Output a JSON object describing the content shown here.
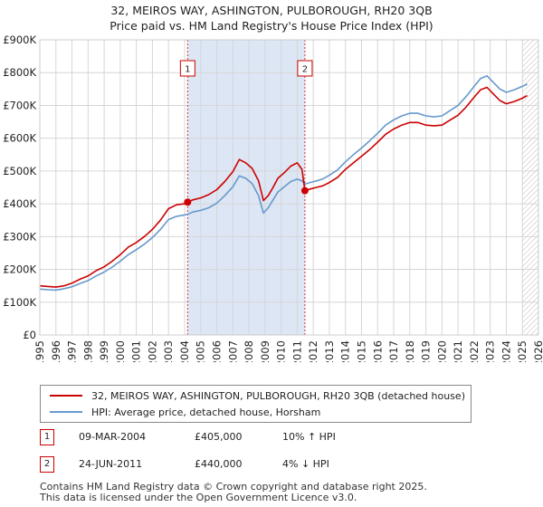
{
  "title_line1": "32, MEIROS WAY, ASHINGTON, PULBOROUGH, RH20 3QB",
  "title_line2": "Price paid vs. HM Land Registry's House Price Index (HPI)",
  "colors": {
    "property": "#cc0000",
    "hpi": "#6699cc",
    "band": "#dde6f4",
    "grid": "#d6d6d6",
    "marker_line": "#cc0000"
  },
  "chart_data": {
    "type": "line",
    "x_range": [
      1995,
      2026
    ],
    "ylim": [
      0,
      900000
    ],
    "y_ticks": [
      0,
      100000,
      200000,
      300000,
      400000,
      500000,
      600000,
      700000,
      800000,
      900000
    ],
    "y_tick_labels": [
      "£0",
      "£100K",
      "£200K",
      "£300K",
      "£400K",
      "£500K",
      "£600K",
      "£700K",
      "£800K",
      "£900K"
    ],
    "x_ticks": [
      1995,
      1996,
      1997,
      1998,
      1999,
      2000,
      2001,
      2002,
      2003,
      2004,
      2005,
      2006,
      2007,
      2008,
      2009,
      2010,
      2011,
      2012,
      2013,
      2014,
      2015,
      2016,
      2017,
      2018,
      2019,
      2020,
      2021,
      2022,
      2023,
      2024,
      2025,
      2026
    ],
    "shaded_band": [
      2004.19,
      2011.48
    ],
    "forecast_hatch_from": 2025.0,
    "series": [
      {
        "name": "32, MEIROS WAY, ASHINGTON, PULBOROUGH, RH20 3QB (detached house)",
        "color": "#cc0000",
        "points": [
          [
            1995.0,
            150000
          ],
          [
            1995.5,
            148000
          ],
          [
            1996.0,
            146000
          ],
          [
            1996.5,
            150000
          ],
          [
            1997.0,
            158000
          ],
          [
            1997.5,
            170000
          ],
          [
            1998.0,
            180000
          ],
          [
            1998.5,
            196000
          ],
          [
            1999.0,
            208000
          ],
          [
            1999.5,
            225000
          ],
          [
            2000.0,
            245000
          ],
          [
            2000.5,
            268000
          ],
          [
            2001.0,
            282000
          ],
          [
            2001.5,
            300000
          ],
          [
            2002.0,
            322000
          ],
          [
            2002.5,
            350000
          ],
          [
            2003.0,
            385000
          ],
          [
            2003.5,
            397000
          ],
          [
            2004.0,
            400000
          ],
          [
            2004.19,
            405000
          ],
          [
            2004.5,
            412000
          ],
          [
            2005.0,
            418000
          ],
          [
            2005.5,
            428000
          ],
          [
            2006.0,
            443000
          ],
          [
            2006.5,
            468000
          ],
          [
            2007.0,
            498000
          ],
          [
            2007.4,
            535000
          ],
          [
            2007.8,
            525000
          ],
          [
            2008.2,
            508000
          ],
          [
            2008.6,
            470000
          ],
          [
            2008.9,
            410000
          ],
          [
            2009.2,
            425000
          ],
          [
            2009.5,
            450000
          ],
          [
            2009.8,
            478000
          ],
          [
            2010.2,
            495000
          ],
          [
            2010.6,
            515000
          ],
          [
            2011.0,
            525000
          ],
          [
            2011.3,
            505000
          ],
          [
            2011.48,
            440000
          ],
          [
            2011.8,
            445000
          ],
          [
            2012.2,
            450000
          ],
          [
            2012.6,
            455000
          ],
          [
            2013.0,
            465000
          ],
          [
            2013.5,
            480000
          ],
          [
            2014.0,
            505000
          ],
          [
            2014.5,
            525000
          ],
          [
            2015.0,
            545000
          ],
          [
            2015.5,
            565000
          ],
          [
            2016.0,
            588000
          ],
          [
            2016.5,
            612000
          ],
          [
            2017.0,
            628000
          ],
          [
            2017.5,
            640000
          ],
          [
            2018.0,
            648000
          ],
          [
            2018.5,
            648000
          ],
          [
            2019.0,
            640000
          ],
          [
            2019.5,
            638000
          ],
          [
            2020.0,
            640000
          ],
          [
            2020.5,
            655000
          ],
          [
            2021.0,
            670000
          ],
          [
            2021.5,
            695000
          ],
          [
            2022.0,
            725000
          ],
          [
            2022.4,
            748000
          ],
          [
            2022.8,
            755000
          ],
          [
            2023.2,
            735000
          ],
          [
            2023.6,
            715000
          ],
          [
            2024.0,
            705000
          ],
          [
            2024.5,
            712000
          ],
          [
            2025.0,
            722000
          ],
          [
            2025.3,
            730000
          ]
        ]
      },
      {
        "name": "HPI: Average price, detached house, Horsham",
        "color": "#6699cc",
        "points": [
          [
            1995.0,
            140000
          ],
          [
            1995.5,
            138000
          ],
          [
            1996.0,
            137000
          ],
          [
            1996.5,
            141000
          ],
          [
            1997.0,
            147000
          ],
          [
            1997.5,
            157000
          ],
          [
            1998.0,
            166000
          ],
          [
            1998.5,
            180000
          ],
          [
            1999.0,
            192000
          ],
          [
            1999.5,
            207000
          ],
          [
            2000.0,
            225000
          ],
          [
            2000.5,
            245000
          ],
          [
            2001.0,
            260000
          ],
          [
            2001.5,
            277000
          ],
          [
            2002.0,
            297000
          ],
          [
            2002.5,
            322000
          ],
          [
            2003.0,
            352000
          ],
          [
            2003.5,
            362000
          ],
          [
            2004.0,
            366000
          ],
          [
            2004.19,
            368000
          ],
          [
            2004.5,
            375000
          ],
          [
            2005.0,
            380000
          ],
          [
            2005.5,
            388000
          ],
          [
            2006.0,
            402000
          ],
          [
            2006.5,
            425000
          ],
          [
            2007.0,
            452000
          ],
          [
            2007.4,
            485000
          ],
          [
            2007.8,
            478000
          ],
          [
            2008.2,
            462000
          ],
          [
            2008.6,
            425000
          ],
          [
            2008.9,
            372000
          ],
          [
            2009.2,
            388000
          ],
          [
            2009.5,
            412000
          ],
          [
            2009.8,
            436000
          ],
          [
            2010.2,
            452000
          ],
          [
            2010.6,
            468000
          ],
          [
            2011.0,
            475000
          ],
          [
            2011.3,
            470000
          ],
          [
            2011.48,
            460000
          ],
          [
            2011.8,
            465000
          ],
          [
            2012.2,
            470000
          ],
          [
            2012.6,
            476000
          ],
          [
            2013.0,
            487000
          ],
          [
            2013.5,
            503000
          ],
          [
            2014.0,
            528000
          ],
          [
            2014.5,
            550000
          ],
          [
            2015.0,
            570000
          ],
          [
            2015.5,
            592000
          ],
          [
            2016.0,
            615000
          ],
          [
            2016.5,
            640000
          ],
          [
            2017.0,
            656000
          ],
          [
            2017.5,
            668000
          ],
          [
            2018.0,
            676000
          ],
          [
            2018.5,
            676000
          ],
          [
            2019.0,
            668000
          ],
          [
            2019.5,
            665000
          ],
          [
            2020.0,
            668000
          ],
          [
            2020.5,
            684000
          ],
          [
            2021.0,
            700000
          ],
          [
            2021.5,
            727000
          ],
          [
            2022.0,
            758000
          ],
          [
            2022.4,
            782000
          ],
          [
            2022.8,
            790000
          ],
          [
            2023.2,
            770000
          ],
          [
            2023.6,
            750000
          ],
          [
            2024.0,
            740000
          ],
          [
            2024.5,
            748000
          ],
          [
            2025.0,
            758000
          ],
          [
            2025.3,
            765000
          ]
        ]
      }
    ],
    "sales": [
      {
        "label": "1",
        "x": 2004.19,
        "price": 405000
      },
      {
        "label": "2",
        "x": 2011.48,
        "price": 440000
      }
    ]
  },
  "legend": {
    "property_label": "32, MEIROS WAY, ASHINGTON, PULBOROUGH, RH20 3QB (detached house)",
    "hpi_label": "HPI: Average price, detached house, Horsham"
  },
  "sales_table": [
    {
      "num": "1",
      "date": "09-MAR-2004",
      "price": "£405,000",
      "hpi": "10% ↑ HPI"
    },
    {
      "num": "2",
      "date": "24-JUN-2011",
      "price": "£440,000",
      "hpi": "4% ↓ HPI"
    }
  ],
  "footer": {
    "line1": "Contains HM Land Registry data © Crown copyright and database right 2025.",
    "line2": "This data is licensed under the Open Government Licence v3.0."
  }
}
